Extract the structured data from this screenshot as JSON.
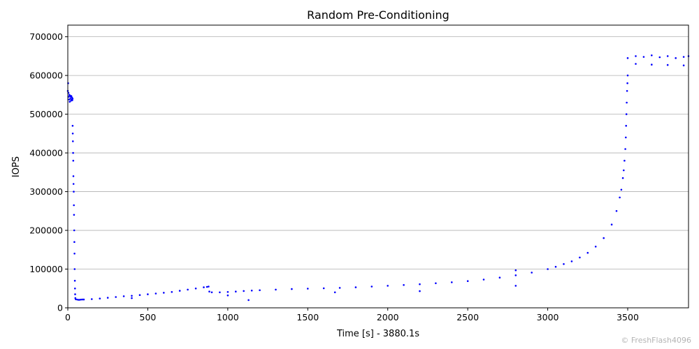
{
  "chart_data": {
    "type": "scatter",
    "title": "Random Pre-Conditioning",
    "xlabel": "Time [s] - 3880.1s",
    "ylabel": "IOPS",
    "xlim": [
      0,
      3880.1
    ],
    "ylim": [
      0,
      730000
    ],
    "xticks": [
      0,
      500,
      1000,
      1500,
      2000,
      2500,
      3000,
      3500
    ],
    "yticks": [
      0,
      100000,
      200000,
      300000,
      400000,
      500000,
      600000,
      700000
    ],
    "grid": "y",
    "marker_color": "#0000ff",
    "series": [
      {
        "points": [
          [
            0,
            560000
          ],
          [
            2,
            580000
          ],
          [
            4,
            555000
          ],
          [
            6,
            545000
          ],
          [
            8,
            538000
          ],
          [
            10,
            550000
          ],
          [
            12,
            532000
          ],
          [
            14,
            548000
          ],
          [
            16,
            540000
          ],
          [
            18,
            545000
          ],
          [
            20,
            535000
          ],
          [
            22,
            547000
          ],
          [
            24,
            538000
          ],
          [
            26,
            543000
          ],
          [
            28,
            536000
          ],
          [
            30,
            540000
          ],
          [
            30,
            470000
          ],
          [
            31,
            450000
          ],
          [
            32,
            430000
          ],
          [
            33,
            400000
          ],
          [
            34,
            380000
          ],
          [
            35,
            340000
          ],
          [
            36,
            320000
          ],
          [
            37,
            300000
          ],
          [
            38,
            265000
          ],
          [
            39,
            240000
          ],
          [
            40,
            200000
          ],
          [
            41,
            170000
          ],
          [
            42,
            140000
          ],
          [
            43,
            100000
          ],
          [
            44,
            70000
          ],
          [
            45,
            50000
          ],
          [
            46,
            35000
          ],
          [
            47,
            25000
          ],
          [
            50,
            22000
          ],
          [
            60,
            21000
          ],
          [
            70,
            20500
          ],
          [
            80,
            21000
          ],
          [
            90,
            21500
          ],
          [
            100,
            21500
          ],
          [
            150,
            22500
          ],
          [
            200,
            24000
          ],
          [
            250,
            26000
          ],
          [
            300,
            28000
          ],
          [
            350,
            30000
          ],
          [
            400,
            31000
          ],
          [
            450,
            33000
          ],
          [
            500,
            35000
          ],
          [
            550,
            37000
          ],
          [
            600,
            39000
          ],
          [
            650,
            41000
          ],
          [
            700,
            44000
          ],
          [
            750,
            47000
          ],
          [
            800,
            50000
          ],
          [
            850,
            53000
          ],
          [
            870,
            54000
          ],
          [
            880,
            55000
          ],
          [
            885,
            42000
          ],
          [
            900,
            40000
          ],
          [
            950,
            40000
          ],
          [
            1000,
            41000
          ],
          [
            1050,
            42000
          ],
          [
            1100,
            43500
          ],
          [
            1150,
            44500
          ],
          [
            1200,
            45500
          ],
          [
            1300,
            47000
          ],
          [
            1400,
            48500
          ],
          [
            1500,
            49500
          ],
          [
            1600,
            50500
          ],
          [
            1700,
            51500
          ],
          [
            1800,
            53000
          ],
          [
            1900,
            55000
          ],
          [
            2000,
            57000
          ],
          [
            2100,
            59000
          ],
          [
            2200,
            61000
          ],
          [
            2300,
            63500
          ],
          [
            2400,
            66000
          ],
          [
            2500,
            69000
          ],
          [
            2600,
            73000
          ],
          [
            2700,
            78000
          ],
          [
            2800,
            84000
          ],
          [
            2900,
            91000
          ],
          [
            3000,
            100000
          ],
          [
            3050,
            106000
          ],
          [
            3100,
            113000
          ],
          [
            3150,
            120000
          ],
          [
            3200,
            130000
          ],
          [
            3250,
            142000
          ],
          [
            3300,
            158000
          ],
          [
            3350,
            180000
          ],
          [
            3400,
            215000
          ],
          [
            3430,
            250000
          ],
          [
            3450,
            285000
          ],
          [
            3460,
            305000
          ],
          [
            3470,
            335000
          ],
          [
            3475,
            355000
          ],
          [
            3480,
            380000
          ],
          [
            3485,
            410000
          ],
          [
            3488,
            440000
          ],
          [
            3490,
            470000
          ],
          [
            3492,
            500000
          ],
          [
            3494,
            530000
          ],
          [
            3496,
            560000
          ],
          [
            3498,
            580000
          ],
          [
            3500,
            600000
          ],
          [
            3500,
            645000
          ],
          [
            3550,
            650000
          ],
          [
            3600,
            648000
          ],
          [
            3650,
            652000
          ],
          [
            3700,
            647000
          ],
          [
            3750,
            650000
          ],
          [
            3800,
            645000
          ],
          [
            3850,
            648000
          ],
          [
            3880,
            650000
          ],
          [
            3550,
            630000
          ],
          [
            3650,
            628000
          ],
          [
            3750,
            627000
          ],
          [
            3850,
            626000
          ],
          [
            1000,
            32000
          ],
          [
            1130,
            20000
          ],
          [
            2200,
            43000
          ],
          [
            2800,
            57000
          ],
          [
            2800,
            97000
          ],
          [
            400,
            25000
          ],
          [
            1670,
            40000
          ]
        ]
      }
    ]
  },
  "watermark": "© FreshFlash4096"
}
